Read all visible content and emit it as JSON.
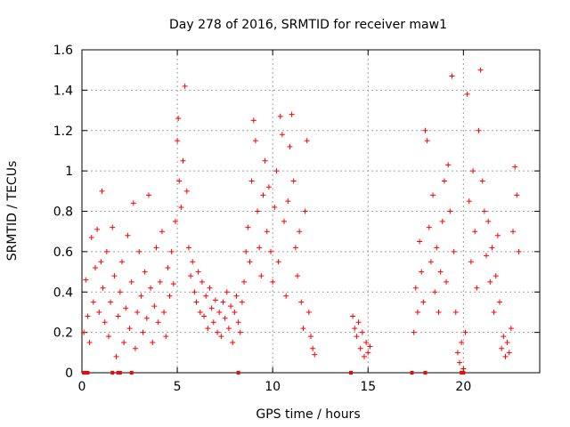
{
  "chart_data": {
    "type": "scatter",
    "title": "Day 278 of 2016, SRMTID for receiver maw1",
    "xlabel": "GPS time / hours",
    "ylabel": "SRMTID / TECUs",
    "xlim": [
      0,
      24
    ],
    "ylim": [
      0,
      1.6
    ],
    "xticks": [
      0,
      5,
      10,
      15,
      20
    ],
    "yticks": [
      0,
      0.2,
      0.4,
      0.6,
      0.8,
      1,
      1.2,
      1.4,
      1.6
    ],
    "xtick_labels": [
      "0",
      "5",
      "10",
      "15",
      "20"
    ],
    "ytick_labels": [
      "0",
      "0.2",
      "0.4",
      "0.6",
      "0.8",
      "1",
      "1.2",
      "1.4",
      "1.6"
    ],
    "grid": true,
    "marker": "plus",
    "series": [
      {
        "name": "maw1",
        "color": "#ff0000",
        "points": [
          [
            0.1,
            0.2
          ],
          [
            0.2,
            0.46
          ],
          [
            0.3,
            0.28
          ],
          [
            0.4,
            0.15
          ],
          [
            0.5,
            0.67
          ],
          [
            0.6,
            0.35
          ],
          [
            0.7,
            0.52
          ],
          [
            0.8,
            0.71
          ],
          [
            0.9,
            0.3
          ],
          [
            1.0,
            0.55
          ],
          [
            1.05,
            0.9
          ],
          [
            1.1,
            0.42
          ],
          [
            1.2,
            0.25
          ],
          [
            1.3,
            0.6
          ],
          [
            1.4,
            0.18
          ],
          [
            1.5,
            0.35
          ],
          [
            1.6,
            0.72
          ],
          [
            1.7,
            0.48
          ],
          [
            1.8,
            0.08
          ],
          [
            1.9,
            0.28
          ],
          [
            2.0,
            0.4
          ],
          [
            2.1,
            0.55
          ],
          [
            2.2,
            0.15
          ],
          [
            2.3,
            0.32
          ],
          [
            2.4,
            0.68
          ],
          [
            2.5,
            0.22
          ],
          [
            2.6,
            0.45
          ],
          [
            2.7,
            0.84
          ],
          [
            2.8,
            0.12
          ],
          [
            2.9,
            0.3
          ],
          [
            3.0,
            0.6
          ],
          [
            3.1,
            0.38
          ],
          [
            3.2,
            0.2
          ],
          [
            3.3,
            0.5
          ],
          [
            3.4,
            0.27
          ],
          [
            3.5,
            0.88
          ],
          [
            3.6,
            0.42
          ],
          [
            3.7,
            0.15
          ],
          [
            3.8,
            0.33
          ],
          [
            3.9,
            0.62
          ],
          [
            4.0,
            0.25
          ],
          [
            4.1,
            0.45
          ],
          [
            4.2,
            0.7
          ],
          [
            4.3,
            0.3
          ],
          [
            4.4,
            0.18
          ],
          [
            4.5,
            0.52
          ],
          [
            4.6,
            0.38
          ],
          [
            4.7,
            0.6
          ],
          [
            4.8,
            0.44
          ],
          [
            4.9,
            0.75
          ],
          [
            5.0,
            1.15
          ],
          [
            5.05,
            1.26
          ],
          [
            5.1,
            0.95
          ],
          [
            5.2,
            0.82
          ],
          [
            5.3,
            1.05
          ],
          [
            5.4,
            1.42
          ],
          [
            5.5,
            0.9
          ],
          [
            5.6,
            0.62
          ],
          [
            5.7,
            0.48
          ],
          [
            5.8,
            0.55
          ],
          [
            5.9,
            0.4
          ],
          [
            6.0,
            0.35
          ],
          [
            6.1,
            0.5
          ],
          [
            6.2,
            0.3
          ],
          [
            6.3,
            0.45
          ],
          [
            6.4,
            0.28
          ],
          [
            6.5,
            0.38
          ],
          [
            6.6,
            0.22
          ],
          [
            6.7,
            0.42
          ],
          [
            6.8,
            0.32
          ],
          [
            6.9,
            0.25
          ],
          [
            7.0,
            0.36
          ],
          [
            7.1,
            0.2
          ],
          [
            7.2,
            0.3
          ],
          [
            7.3,
            0.18
          ],
          [
            7.4,
            0.35
          ],
          [
            7.5,
            0.27
          ],
          [
            7.6,
            0.4
          ],
          [
            7.7,
            0.22
          ],
          [
            7.8,
            0.33
          ],
          [
            7.9,
            0.15
          ],
          [
            8.0,
            0.3
          ],
          [
            8.1,
            0.38
          ],
          [
            8.2,
            0.25
          ],
          [
            8.3,
            0.2
          ],
          [
            8.4,
            0.35
          ],
          [
            8.5,
            0.45
          ],
          [
            8.6,
            0.6
          ],
          [
            8.7,
            0.72
          ],
          [
            8.8,
            0.55
          ],
          [
            8.9,
            0.95
          ],
          [
            9.0,
            1.25
          ],
          [
            9.1,
            1.15
          ],
          [
            9.2,
            0.8
          ],
          [
            9.3,
            0.62
          ],
          [
            9.4,
            0.48
          ],
          [
            9.5,
            0.88
          ],
          [
            9.6,
            1.05
          ],
          [
            9.7,
            0.7
          ],
          [
            9.8,
            0.92
          ],
          [
            9.9,
            0.6
          ],
          [
            10.0,
            0.45
          ],
          [
            10.1,
            0.82
          ],
          [
            10.2,
            1.0
          ],
          [
            10.3,
            0.55
          ],
          [
            10.4,
            1.27
          ],
          [
            10.5,
            1.18
          ],
          [
            10.6,
            0.75
          ],
          [
            10.7,
            0.38
          ],
          [
            10.8,
            0.85
          ],
          [
            10.9,
            1.12
          ],
          [
            11.0,
            1.28
          ],
          [
            11.1,
            0.95
          ],
          [
            11.2,
            0.62
          ],
          [
            11.3,
            0.48
          ],
          [
            11.4,
            0.7
          ],
          [
            11.5,
            0.35
          ],
          [
            11.6,
            0.22
          ],
          [
            11.7,
            0.8
          ],
          [
            11.8,
            1.15
          ],
          [
            11.9,
            0.3
          ],
          [
            12.0,
            0.18
          ],
          [
            12.1,
            0.12
          ],
          [
            12.2,
            0.09
          ],
          [
            14.2,
            0.28
          ],
          [
            14.3,
            0.22
          ],
          [
            14.4,
            0.18
          ],
          [
            14.5,
            0.25
          ],
          [
            14.6,
            0.12
          ],
          [
            14.7,
            0.2
          ],
          [
            14.8,
            0.08
          ],
          [
            14.9,
            0.15
          ],
          [
            15.0,
            0.1
          ],
          [
            15.1,
            0.13
          ],
          [
            17.4,
            0.2
          ],
          [
            17.5,
            0.42
          ],
          [
            17.6,
            0.3
          ],
          [
            17.7,
            0.65
          ],
          [
            17.8,
            0.5
          ],
          [
            17.9,
            0.35
          ],
          [
            18.0,
            1.2
          ],
          [
            18.1,
            1.15
          ],
          [
            18.2,
            0.72
          ],
          [
            18.3,
            0.55
          ],
          [
            18.4,
            0.88
          ],
          [
            18.5,
            0.4
          ],
          [
            18.6,
            0.62
          ],
          [
            18.7,
            0.3
          ],
          [
            18.8,
            0.5
          ],
          [
            18.9,
            0.75
          ],
          [
            19.0,
            0.95
          ],
          [
            19.1,
            0.45
          ],
          [
            19.2,
            1.03
          ],
          [
            19.3,
            0.8
          ],
          [
            19.4,
            1.47
          ],
          [
            19.5,
            0.6
          ],
          [
            19.6,
            0.3
          ],
          [
            19.7,
            0.1
          ],
          [
            19.8,
            0.05
          ],
          [
            19.9,
            0.15
          ],
          [
            20.0,
            0.02
          ],
          [
            20.1,
            0.2
          ],
          [
            20.2,
            1.38
          ],
          [
            20.3,
            0.85
          ],
          [
            20.4,
            0.55
          ],
          [
            20.5,
            1.0
          ],
          [
            20.6,
            0.7
          ],
          [
            20.7,
            0.42
          ],
          [
            20.8,
            1.2
          ],
          [
            20.9,
            1.5
          ],
          [
            21.0,
            0.95
          ],
          [
            21.1,
            0.8
          ],
          [
            21.2,
            0.58
          ],
          [
            21.3,
            0.75
          ],
          [
            21.4,
            0.45
          ],
          [
            21.5,
            0.62
          ],
          [
            21.6,
            0.3
          ],
          [
            21.7,
            0.48
          ],
          [
            21.8,
            0.68
          ],
          [
            21.9,
            0.35
          ],
          [
            22.0,
            0.12
          ],
          [
            22.1,
            0.18
          ],
          [
            22.2,
            0.08
          ],
          [
            22.3,
            0.15
          ],
          [
            22.4,
            0.1
          ],
          [
            22.5,
            0.22
          ],
          [
            22.6,
            0.7
          ],
          [
            22.7,
            1.02
          ],
          [
            22.8,
            0.88
          ],
          [
            22.9,
            0.6
          ]
        ]
      }
    ],
    "zero_markers_x": [
      0.1,
      0.2,
      0.3,
      1.6,
      1.9,
      2.0,
      2.6,
      8.2,
      14.1,
      17.3,
      18.0,
      19.9,
      20.0
    ]
  }
}
